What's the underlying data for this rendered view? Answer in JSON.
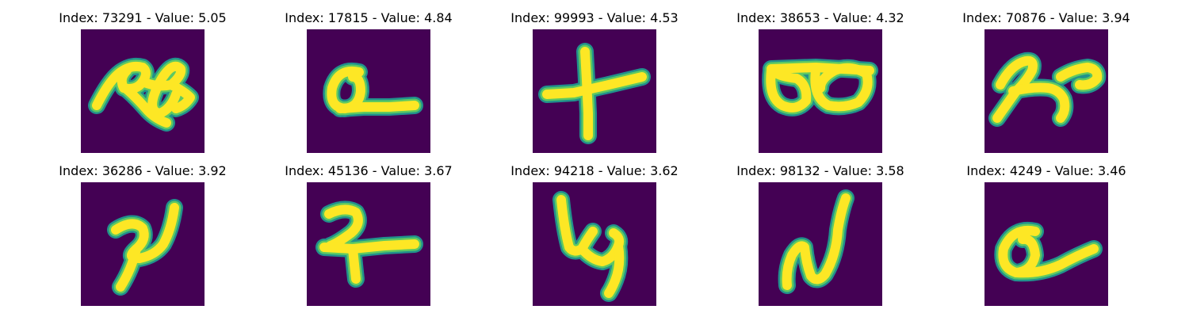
{
  "colors": {
    "background": "#440154",
    "stroke_core": "#fde725",
    "stroke_mid": "#5ec962",
    "stroke_edge": "#21918c"
  },
  "panels": [
    {
      "title": "Index: 73291 - Value: 5.05",
      "glyph": "scribble-a"
    },
    {
      "title": "Index: 17815 - Value: 4.84",
      "glyph": "loop-line"
    },
    {
      "title": "Index: 99993 - Value: 4.53",
      "glyph": "plus"
    },
    {
      "title": "Index: 38653 - Value: 4.32",
      "glyph": "double-loop"
    },
    {
      "title": "Index: 70876 - Value: 3.94",
      "glyph": "curly-x"
    },
    {
      "title": "Index: 36286 - Value: 3.92",
      "glyph": "hook-stroke"
    },
    {
      "title": "Index: 45136 - Value: 3.67",
      "glyph": "cross-hook"
    },
    {
      "title": "Index: 94218 - Value: 3.62",
      "glyph": "squiggle-4"
    },
    {
      "title": "Index: 98132 - Value: 3.58",
      "glyph": "n-stroke"
    },
    {
      "title": "Index: 4249 - Value: 3.46",
      "glyph": "loop-tail"
    }
  ]
}
